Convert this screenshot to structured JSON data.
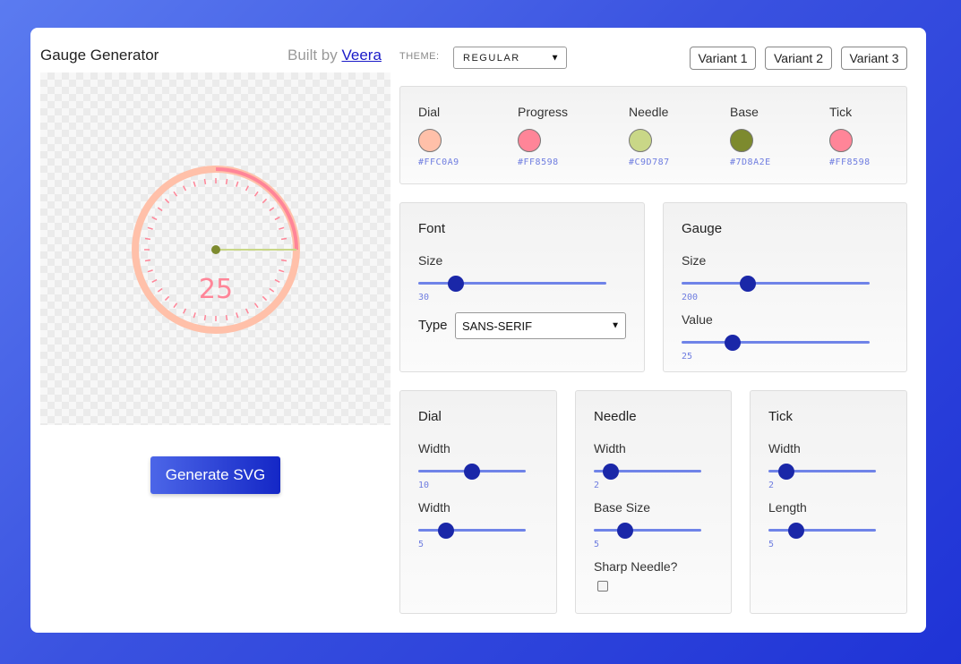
{
  "app": {
    "title": "Gauge Generator",
    "built_by": "Built by",
    "author": "Veera"
  },
  "theme": {
    "label": "THEME:",
    "value": "REGULAR"
  },
  "variants": [
    "Variant 1",
    "Variant 2",
    "Variant 3"
  ],
  "colors": [
    {
      "name": "Dial",
      "hex": "#FFC0A9"
    },
    {
      "name": "Progress",
      "hex": "#FF8598"
    },
    {
      "name": "Needle",
      "hex": "#C9D787"
    },
    {
      "name": "Base",
      "hex": "#7D8A2E"
    },
    {
      "name": "Tick",
      "hex": "#FF8598"
    }
  ],
  "font": {
    "title": "Font",
    "size": {
      "label": "Size",
      "value": "30",
      "fraction": 0.2
    },
    "type": {
      "label": "Type",
      "value": "SANS-SERIF"
    }
  },
  "gauge": {
    "title": "Gauge",
    "size": {
      "label": "Size",
      "value": "200",
      "fraction": 0.35
    },
    "value": {
      "label": "Value",
      "value": "25",
      "fraction": 0.27
    }
  },
  "dial": {
    "title": "Dial",
    "width1": {
      "label": "Width",
      "value": "10",
      "fraction": 0.5
    },
    "width2": {
      "label": "Width",
      "value": "5",
      "fraction": 0.26
    }
  },
  "needle": {
    "title": "Needle",
    "width": {
      "label": "Width",
      "value": "2",
      "fraction": 0.16
    },
    "base_size": {
      "label": "Base Size",
      "value": "5",
      "fraction": 0.29
    },
    "sharp": {
      "label": "Sharp Needle?",
      "checked": false
    }
  },
  "tick": {
    "title": "Tick",
    "width": {
      "label": "Width",
      "value": "2",
      "fraction": 0.17
    },
    "length": {
      "label": "Length",
      "value": "5",
      "fraction": 0.26
    }
  },
  "preview": {
    "gauge_value": "25",
    "progress_fraction": 0.25
  },
  "generate_label": "Generate SVG"
}
